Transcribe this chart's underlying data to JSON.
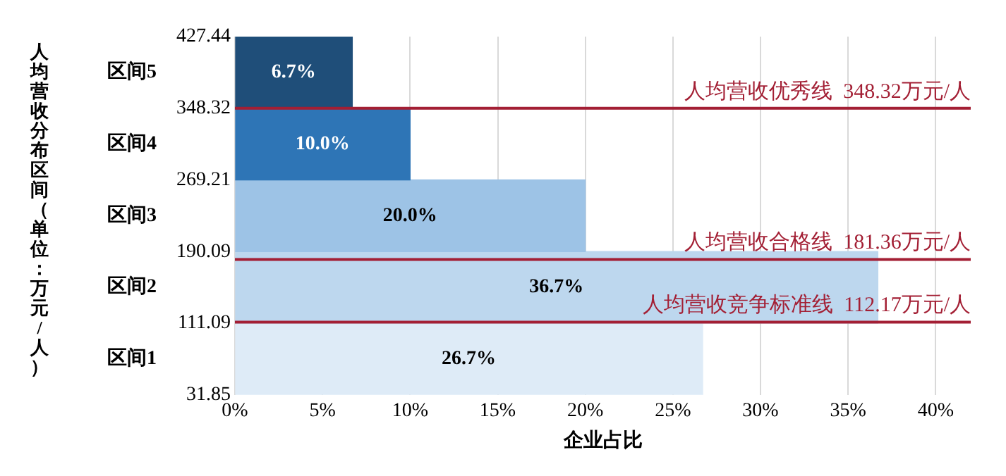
{
  "chart_data": {
    "type": "histogram",
    "orientation": "horizontal",
    "xlabel": "企业占比",
    "ylabel": "人均营收分布区间（单位：万元/人）",
    "categories": [
      "区间5",
      "区间4",
      "区间3",
      "区间2",
      "区间1"
    ],
    "bins": [
      427.44,
      348.32,
      269.21,
      190.09,
      111.09,
      31.85
    ],
    "values": [
      6.7,
      10.0,
      20.0,
      36.7,
      26.7
    ],
    "value_labels": [
      "6.7%",
      "10.0%",
      "20.0%",
      "36.7%",
      "26.7%"
    ],
    "colors": [
      "#1f4e79",
      "#2e75b6",
      "#9dc3e6",
      "#bdd7ee",
      "#deebf7"
    ],
    "xlim": [
      0,
      42
    ],
    "xticks": [
      {
        "value": 0,
        "label": "0%"
      },
      {
        "value": 5,
        "label": "5%"
      },
      {
        "value": 10,
        "label": "10%"
      },
      {
        "value": 15,
        "label": "15%"
      },
      {
        "value": 20,
        "label": "20%"
      },
      {
        "value": 25,
        "label": "25%"
      },
      {
        "value": 30,
        "label": "30%"
      },
      {
        "value": 35,
        "label": "35%"
      },
      {
        "value": 40,
        "label": "40%"
      }
    ],
    "ylim": [
      31.85,
      427.44
    ],
    "yticks": [
      31.85,
      111.09,
      190.09,
      269.21,
      348.32,
      427.44
    ],
    "grid": "x",
    "legend": false,
    "ref_lines": [
      {
        "axis": "y",
        "value": 348.32,
        "label": "人均营收优秀线  348.32万元/人",
        "color": "#a31f34"
      },
      {
        "axis": "y",
        "value": 181.36,
        "label": "人均营收合格线  181.36万元/人",
        "color": "#a31f34"
      },
      {
        "axis": "y",
        "value": 112.17,
        "label": "人均营收竞争标准线  112.17万元/人",
        "color": "#a31f34"
      }
    ]
  }
}
